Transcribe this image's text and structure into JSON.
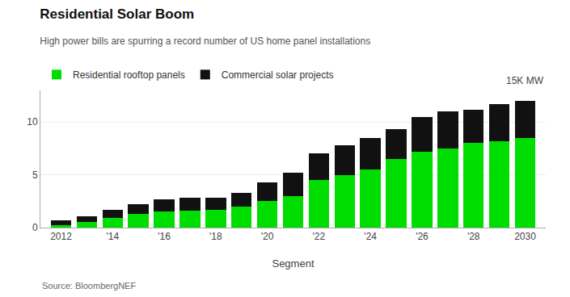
{
  "chart_data": {
    "type": "bar",
    "stacked": true,
    "title": "Residential Solar Boom",
    "subtitle": "High power bills are spurring a record number of US home panel installations",
    "xlabel": "Segment",
    "annotations": [
      "15K MW"
    ],
    "source": "Source: BloombergNEF",
    "x": [
      2012,
      2013,
      2014,
      2015,
      2016,
      2017,
      2018,
      2019,
      2020,
      2021,
      2022,
      2023,
      2024,
      2025,
      2026,
      2027,
      2028,
      2029,
      2030
    ],
    "series": [
      {
        "name": "Residential rooftop panels",
        "color": "#00dd00",
        "values": [
          0.2,
          0.5,
          0.9,
          1.3,
          1.5,
          1.6,
          1.7,
          2.0,
          2.5,
          3.0,
          4.5,
          5.0,
          5.5,
          6.5,
          7.2,
          7.5,
          8.0,
          8.2,
          8.5
        ]
      },
      {
        "name": "Commercial solar projects",
        "color": "#111111",
        "values": [
          0.5,
          0.6,
          0.8,
          0.9,
          1.2,
          1.2,
          1.1,
          1.3,
          1.8,
          2.2,
          2.5,
          2.8,
          3.0,
          2.8,
          3.3,
          3.5,
          3.2,
          3.5,
          3.5
        ]
      }
    ],
    "xlim": [
      2011.2,
      2030.8
    ],
    "xticks": [
      2012,
      {
        "value": 2014,
        "label": "'14"
      },
      {
        "value": 2016,
        "label": "'16"
      },
      {
        "value": 2018,
        "label": "'18"
      },
      {
        "value": 2020,
        "label": "'20"
      },
      {
        "value": 2022,
        "label": "'22"
      },
      {
        "value": 2024,
        "label": "'24"
      },
      {
        "value": 2026,
        "label": "'26"
      },
      {
        "value": 2028,
        "label": "'28"
      },
      2030
    ],
    "ylim": [
      0,
      13
    ],
    "yticks": [
      0,
      5,
      10
    ],
    "grid": true,
    "legend": "upper left"
  }
}
